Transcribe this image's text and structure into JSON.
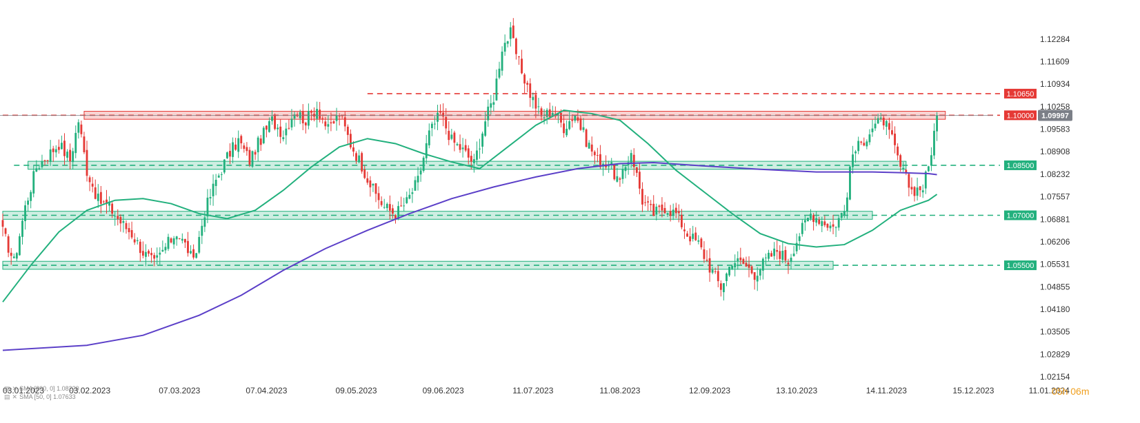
{
  "chart_data": {
    "type": "candlestick",
    "instrument_last_price": "1.09997",
    "yaxis": {
      "ticks": [
        "1.12284",
        "1.11609",
        "1.10934",
        "1.10258",
        "1.09583",
        "1.08908",
        "1.08232",
        "1.07557",
        "1.06881",
        "1.06206",
        "1.05531",
        "1.04855",
        "1.04180",
        "1.03505",
        "1.02829",
        "1.02154"
      ],
      "range": [
        1.0205,
        1.1288
      ]
    },
    "xaxis": {
      "ticks": [
        "03.01.2023",
        "03.02.2023",
        "07.03.2023",
        "07.04.2023",
        "09.05.2023",
        "09.06.2023",
        "11.07.2023",
        "11.08.2023",
        "12.09.2023",
        "13.10.2023",
        "14.11.2023",
        "15.12.2023",
        "11.01.2024"
      ],
      "days_range": [
        0,
        369
      ]
    },
    "levels": [
      {
        "label": "1.10650",
        "value": 1.1065,
        "color": "#e53935",
        "style": "dashed"
      },
      {
        "label": "1.10000",
        "value": 1.1,
        "color": "#e53935",
        "style": "dashed"
      },
      {
        "label": "1.08500",
        "value": 1.085,
        "color": "#22b07d",
        "style": "dashed"
      },
      {
        "label": "1.07000",
        "value": 1.07,
        "color": "#22b07d",
        "style": "dashed"
      },
      {
        "label": "1.05500",
        "value": 1.055,
        "color": "#22b07d",
        "style": "dashed"
      }
    ],
    "zones": [
      {
        "y_low": 1.0988,
        "y_high": 1.1012,
        "x_start_day": 29,
        "x_end_day": 336,
        "color": "#e53935"
      },
      {
        "y_low": 1.0838,
        "y_high": 1.0862,
        "x_start_day": 9,
        "x_end_day": 322,
        "color": "#22b07d"
      },
      {
        "y_low": 1.0688,
        "y_high": 1.0712,
        "x_start_day": 0,
        "x_end_day": 310,
        "color": "#22b07d"
      },
      {
        "y_low": 1.0538,
        "y_high": 1.0562,
        "x_start_day": 0,
        "x_end_day": 296,
        "color": "#22b07d"
      }
    ],
    "series": [
      {
        "name": "SMA [200, 0] 1.08220",
        "color": "#5b3fc8",
        "x": [
          0,
          30,
          50,
          70,
          85,
          100,
          115,
          130,
          145,
          160,
          175,
          190,
          205,
          220,
          232,
          250,
          270,
          290,
          310,
          320,
          330,
          333
        ],
        "values": [
          1.0295,
          1.031,
          1.034,
          1.04,
          1.046,
          1.0535,
          1.06,
          1.0655,
          1.0705,
          1.075,
          1.0785,
          1.0815,
          1.084,
          1.0855,
          1.0858,
          1.0848,
          1.0838,
          1.083,
          1.083,
          1.0828,
          1.0825,
          1.0822
        ]
      },
      {
        "name": "SMA [50, 0] 1.07633",
        "color": "#22b07d",
        "x": [
          0,
          10,
          20,
          30,
          40,
          50,
          60,
          70,
          80,
          90,
          100,
          110,
          120,
          130,
          140,
          150,
          160,
          170,
          180,
          190,
          200,
          210,
          220,
          230,
          240,
          250,
          260,
          270,
          280,
          290,
          300,
          310,
          320,
          330,
          333
        ],
        "values": [
          1.044,
          1.055,
          1.065,
          1.0715,
          1.0745,
          1.075,
          1.0735,
          1.0705,
          1.069,
          1.0715,
          1.0775,
          1.0845,
          1.0905,
          1.093,
          1.0915,
          1.0885,
          1.086,
          1.084,
          1.0905,
          1.097,
          1.1015,
          1.1005,
          1.0985,
          1.0915,
          1.0835,
          1.077,
          1.0705,
          1.0645,
          1.0615,
          1.0605,
          1.0612,
          1.0655,
          1.0715,
          1.0745,
          1.0763
        ]
      }
    ],
    "anchor_closes": [
      [
        0,
        1.065
      ],
      [
        4,
        1.056
      ],
      [
        8,
        1.0725
      ],
      [
        12,
        1.0845
      ],
      [
        16,
        1.088
      ],
      [
        20,
        1.0915
      ],
      [
        24,
        1.0865
      ],
      [
        27,
        1.0985
      ],
      [
        30,
        1.0835
      ],
      [
        34,
        1.0745
      ],
      [
        38,
        1.0725
      ],
      [
        42,
        1.068
      ],
      [
        46,
        1.0645
      ],
      [
        50,
        1.059
      ],
      [
        54,
        1.0555
      ],
      [
        58,
        1.0605
      ],
      [
        62,
        1.065
      ],
      [
        66,
        1.0598
      ],
      [
        68,
        1.0555
      ],
      [
        72,
        1.0712
      ],
      [
        76,
        1.0805
      ],
      [
        80,
        1.0875
      ],
      [
        84,
        1.0925
      ],
      [
        88,
        1.0865
      ],
      [
        92,
        1.093
      ],
      [
        96,
        1.0985
      ],
      [
        100,
        1.0945
      ],
      [
        104,
        1.1015
      ],
      [
        108,
        1.0985
      ],
      [
        112,
        1.1025
      ],
      [
        116,
        1.0955
      ],
      [
        120,
        1.1005
      ],
      [
        124,
        1.0915
      ],
      [
        128,
        1.085
      ],
      [
        132,
        1.0775
      ],
      [
        136,
        1.0725
      ],
      [
        140,
        1.0705
      ],
      [
        144,
        1.074
      ],
      [
        148,
        1.0805
      ],
      [
        152,
        1.0945
      ],
      [
        156,
        1.1005
      ],
      [
        160,
        1.0925
      ],
      [
        164,
        1.0895
      ],
      [
        168,
        1.0855
      ],
      [
        172,
        1.0985
      ],
      [
        175,
        1.1055
      ],
      [
        178,
        1.1205
      ],
      [
        181,
        1.1245
      ],
      [
        184,
        1.1155
      ],
      [
        188,
        1.1065
      ],
      [
        192,
        1.0995
      ],
      [
        196,
        1.1015
      ],
      [
        200,
        1.0965
      ],
      [
        204,
        1.1005
      ],
      [
        208,
        1.0925
      ],
      [
        212,
        1.0865
      ],
      [
        216,
        1.0855
      ],
      [
        220,
        1.0795
      ],
      [
        224,
        1.0895
      ],
      [
        228,
        1.0745
      ],
      [
        232,
        1.0705
      ],
      [
        236,
        1.0725
      ],
      [
        240,
        1.0705
      ],
      [
        244,
        1.0645
      ],
      [
        248,
        1.0615
      ],
      [
        252,
        1.0545
      ],
      [
        256,
        1.0485
      ],
      [
        260,
        1.0565
      ],
      [
        264,
        1.0555
      ],
      [
        268,
        1.0525
      ],
      [
        272,
        1.0565
      ],
      [
        276,
        1.0595
      ],
      [
        280,
        1.0565
      ],
      [
        284,
        1.0645
      ],
      [
        288,
        1.0705
      ],
      [
        292,
        1.0685
      ],
      [
        296,
        1.0665
      ],
      [
        300,
        1.0715
      ],
      [
        303,
        1.0885
      ],
      [
        306,
        1.0915
      ],
      [
        310,
        1.0965
      ],
      [
        314,
        1.0985
      ],
      [
        317,
        1.0925
      ],
      [
        320,
        1.0845
      ],
      [
        324,
        1.0775
      ],
      [
        328,
        1.0785
      ],
      [
        330,
        1.0845
      ],
      [
        333,
        1.09997
      ]
    ]
  },
  "legend": {
    "sma200": "SMA [200, 0] 1.08220",
    "sma50": "SMA [50, 0] 1.07633"
  },
  "timer": "05h 06m",
  "colors": {
    "bull": "#22b07d",
    "bear": "#e53935",
    "price_tag": "#7b7f87"
  }
}
